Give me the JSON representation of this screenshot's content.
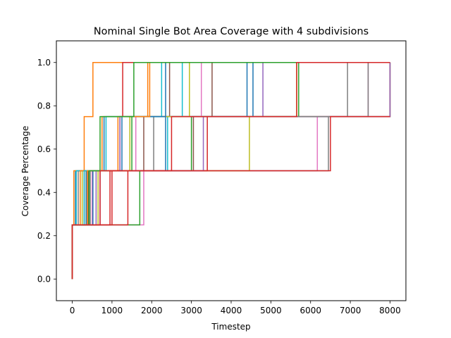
{
  "chart_data": {
    "type": "line",
    "title": "Nominal Single Bot Area Coverage with 4 subdivisions",
    "xlabel": "Timestep",
    "ylabel": "Coverage Percentage",
    "xlim": [
      -400,
      8400
    ],
    "ylim": [
      -0.1,
      1.1
    ],
    "xticks": [
      0,
      1000,
      2000,
      3000,
      4000,
      5000,
      6000,
      7000,
      8000
    ],
    "yticks": [
      0.0,
      0.2,
      0.4,
      0.6,
      0.8,
      1.0
    ],
    "ytick_labels": [
      "0.0",
      "0.2",
      "0.4",
      "0.6",
      "0.8",
      "1.0"
    ],
    "grid": false,
    "legend": "none",
    "step": "post",
    "series": [
      {
        "color": "#1f77b4",
        "x": [
          0,
          0,
          80,
          250,
          800,
          4550,
          8000
        ],
        "y": [
          0,
          0.25,
          0.5,
          0.5,
          0.75,
          1.0,
          1.0
        ]
      },
      {
        "color": "#ff7f0e",
        "x": [
          0,
          0,
          40,
          300,
          520,
          8000
        ],
        "y": [
          0,
          0.25,
          0.5,
          0.75,
          1.0,
          1.0
        ]
      },
      {
        "color": "#2ca02c",
        "x": [
          0,
          0,
          450,
          1500,
          8000
        ],
        "y": [
          0,
          0.25,
          0.5,
          0.75,
          1.0
        ]
      },
      {
        "color": "#d62728",
        "x": [
          0,
          0,
          1000,
          1200,
          1270,
          8000
        ],
        "y": [
          0,
          0.25,
          0.5,
          0.75,
          1.0,
          1.0
        ]
      },
      {
        "color": "#9467bd",
        "x": [
          0,
          0,
          600,
          1200,
          4800,
          8000
        ],
        "y": [
          0,
          0.25,
          0.5,
          0.75,
          1.0,
          1.0
        ]
      },
      {
        "color": "#8c564b",
        "x": [
          0,
          0,
          300,
          3050,
          3520,
          8000
        ],
        "y": [
          0,
          0.25,
          0.5,
          0.75,
          1.0,
          1.0
        ]
      },
      {
        "color": "#e377c2",
        "x": [
          0,
          0,
          1800,
          6170,
          7450,
          8000
        ],
        "y": [
          0,
          0.25,
          0.5,
          0.75,
          1.0,
          1.0
        ]
      },
      {
        "color": "#7f7f7f",
        "x": [
          0,
          0,
          150,
          6450,
          6930,
          8000
        ],
        "y": [
          0,
          0.25,
          0.5,
          0.75,
          1.0,
          1.0
        ]
      },
      {
        "color": "#bcbd22",
        "x": [
          0,
          0,
          250,
          4460,
          5650,
          8000
        ],
        "y": [
          0,
          0.25,
          0.5,
          0.75,
          1.0,
          1.0
        ]
      },
      {
        "color": "#17becf",
        "x": [
          0,
          0,
          100,
          2400,
          2770,
          8000
        ],
        "y": [
          0,
          0.25,
          0.5,
          0.75,
          1.0,
          1.0
        ]
      },
      {
        "color": "#1f77b4",
        "x": [
          0,
          0,
          350,
          2350,
          4400,
          8000
        ],
        "y": [
          0,
          0.25,
          0.5,
          0.75,
          1.0,
          1.0
        ]
      },
      {
        "color": "#ff7f0e",
        "x": [
          0,
          0,
          200,
          750,
          1900,
          8000
        ],
        "y": [
          0,
          0.25,
          0.5,
          0.75,
          1.0,
          1.0
        ]
      },
      {
        "color": "#2ca02c",
        "x": [
          0,
          0,
          1700,
          3000,
          5700,
          8000
        ],
        "y": [
          0,
          0.25,
          0.5,
          0.75,
          1.0,
          1.0
        ]
      },
      {
        "color": "#d62728",
        "x": [
          0,
          0,
          1400,
          3400,
          8000
        ],
        "y": [
          0,
          0.25,
          0.5,
          0.75,
          1.0
        ]
      },
      {
        "color": "#9467bd",
        "x": [
          0,
          0,
          700,
          3300,
          8000
        ],
        "y": [
          0,
          0.25,
          0.5,
          0.75,
          1.0
        ]
      },
      {
        "color": "#8c564b",
        "x": [
          0,
          0,
          400,
          1800,
          2450,
          8000
        ],
        "y": [
          0,
          0.25,
          0.5,
          0.75,
          1.0,
          1.0
        ]
      },
      {
        "color": "#e377c2",
        "x": [
          0,
          0,
          500,
          1600,
          3250,
          8000
        ],
        "y": [
          0,
          0.25,
          0.5,
          0.75,
          1.0,
          1.0
        ]
      },
      {
        "color": "#7f7f7f",
        "x": [
          0,
          0,
          450,
          2050,
          7450,
          8000
        ],
        "y": [
          0,
          0.25,
          0.5,
          0.75,
          1.0,
          1.0
        ]
      },
      {
        "color": "#bcbd22",
        "x": [
          0,
          0,
          650,
          1450,
          2950,
          8000
        ],
        "y": [
          0,
          0.25,
          0.5,
          0.75,
          1.0,
          1.0
        ]
      },
      {
        "color": "#17becf",
        "x": [
          0,
          0,
          300,
          850,
          2250,
          8000
        ],
        "y": [
          0,
          0.25,
          0.5,
          0.75,
          1.0,
          1.0
        ]
      },
      {
        "color": "#1f77b4",
        "x": [
          0,
          0,
          520,
          1250,
          2350,
          8000
        ],
        "y": [
          0,
          0.25,
          0.5,
          0.75,
          1.0,
          1.0
        ]
      },
      {
        "color": "#ff7f0e",
        "x": [
          0,
          0,
          380,
          1150,
          1950,
          8000
        ],
        "y": [
          0,
          0.25,
          0.5,
          0.75,
          1.0,
          1.0
        ]
      },
      {
        "color": "#2ca02c",
        "x": [
          0,
          0,
          420,
          700,
          1550,
          8000
        ],
        "y": [
          0,
          0.25,
          0.5,
          0.75,
          1.0,
          1.0
        ]
      },
      {
        "color": "#d62728",
        "x": [
          0,
          0,
          700,
          6500,
          8000
        ],
        "y": [
          0,
          0.25,
          0.5,
          0.75,
          0.75
        ]
      },
      {
        "color": "#d62728",
        "x": [
          0,
          0,
          950,
          2500,
          5650,
          8000
        ],
        "y": [
          0,
          0.25,
          0.5,
          0.75,
          1.0,
          1.0
        ]
      }
    ]
  }
}
